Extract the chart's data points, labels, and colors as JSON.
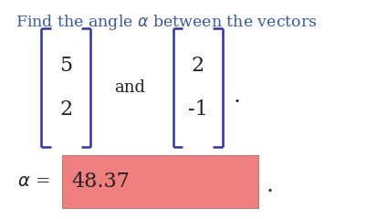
{
  "title_text": "Find the angle $\\alpha$ between the vectors",
  "vec1_top": "5",
  "vec1_bot": "2",
  "vec2_top": "2",
  "vec2_bot": "-1",
  "answer": "48.37",
  "background_color": "#ffffff",
  "box_color": "#f08080",
  "box_edge_color": "#b08080",
  "title_color": "#3a5a9a",
  "text_color": "#222222",
  "bracket_color": "#333399",
  "title_fontsize": 12.5,
  "vec_fontsize": 16,
  "and_fontsize": 13,
  "answer_fontsize": 16,
  "alpha_fontsize": 14
}
